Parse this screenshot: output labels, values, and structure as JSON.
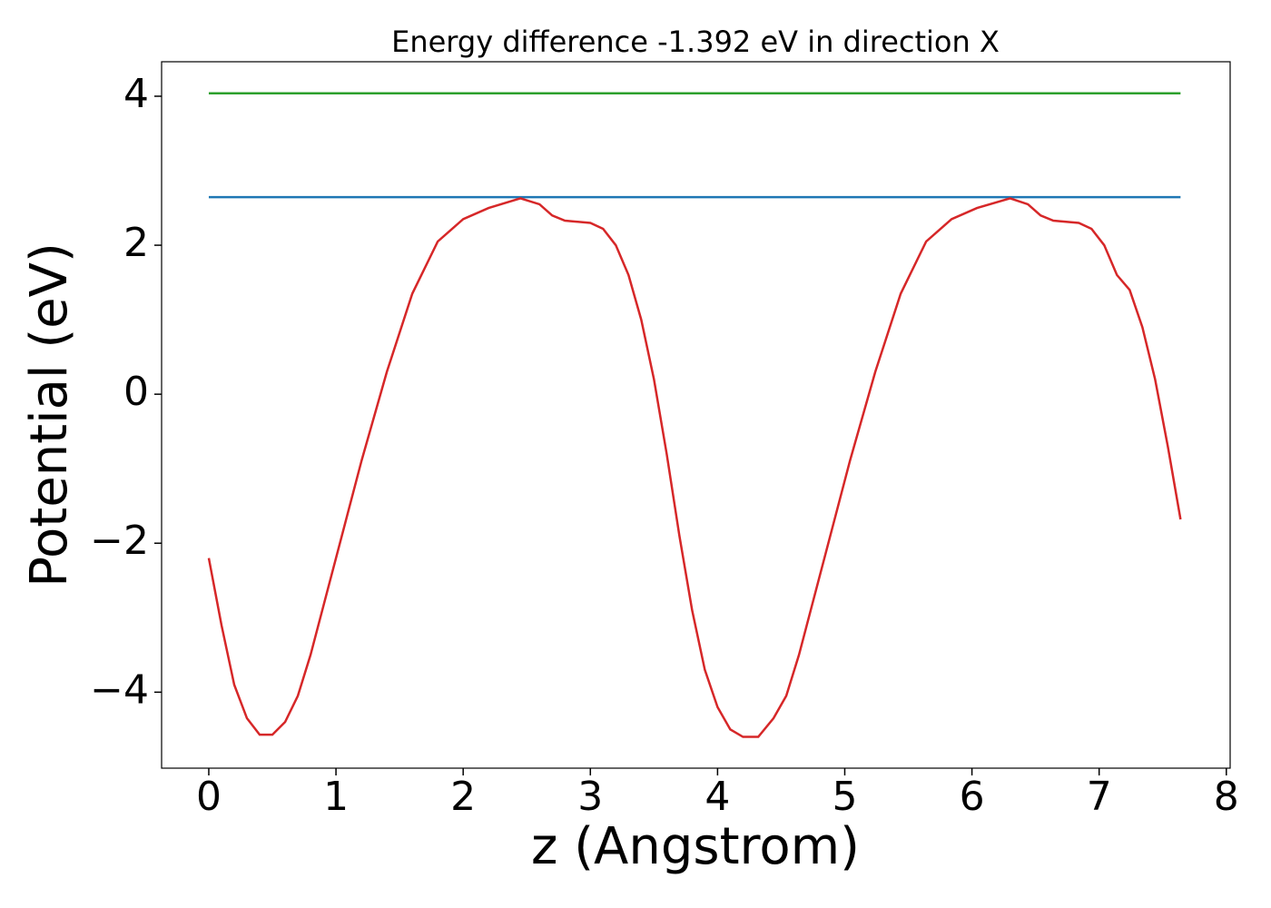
{
  "chart_data": {
    "type": "line",
    "title": "Energy difference -1.392 eV in direction X",
    "x_label": "z (Angstrom)",
    "y_label": "Potential (eV)",
    "xlim": [
      -0.371,
      8.03
    ],
    "ylim": [
      -5.02,
      4.463
    ],
    "xticks": [
      0,
      1,
      2,
      3,
      4,
      5,
      6,
      7,
      8
    ],
    "yticks": [
      {
        "value": -4,
        "label": "−4"
      },
      {
        "value": -2,
        "label": "−2"
      },
      0,
      2,
      4
    ],
    "series": [
      {
        "color": "#2ca02c",
        "x": [
          0,
          7.64
        ],
        "values": [
          4.04,
          4.04
        ]
      },
      {
        "color": "#1f77b4",
        "x": [
          0,
          7.64
        ],
        "values": [
          2.646,
          2.646
        ]
      },
      {
        "color": "#d62728",
        "x": [
          0,
          0.1,
          0.2,
          0.3,
          0.4,
          0.5,
          0.6,
          0.7,
          0.8,
          1.0,
          1.2,
          1.4,
          1.6,
          1.8,
          2.0,
          2.2,
          2.45,
          2.6,
          2.7,
          2.8,
          3.0,
          3.1,
          3.2,
          3.3,
          3.4,
          3.5,
          3.6,
          3.7,
          3.8,
          3.9,
          4.0,
          4.1,
          4.2,
          4.32,
          4.44,
          4.54,
          4.64,
          4.84,
          5.04,
          5.24,
          5.44,
          5.64,
          5.84,
          6.04,
          6.3,
          6.44,
          6.54,
          6.64,
          6.84,
          6.94,
          7.04,
          7.14,
          7.24,
          7.34,
          7.44,
          7.54,
          7.64
        ],
        "values": [
          -2.2,
          -3.1,
          -3.9,
          -4.35,
          -4.57,
          -4.57,
          -4.4,
          -4.05,
          -3.5,
          -2.2,
          -0.9,
          0.3,
          1.35,
          2.05,
          2.35,
          2.5,
          2.63,
          2.55,
          2.4,
          2.33,
          2.3,
          2.22,
          2.0,
          1.6,
          1.0,
          0.2,
          -0.8,
          -1.9,
          -2.9,
          -3.7,
          -4.2,
          -4.5,
          -4.6,
          -4.6,
          -4.35,
          -4.05,
          -3.5,
          -2.2,
          -0.9,
          0.3,
          1.35,
          2.05,
          2.35,
          2.5,
          2.63,
          2.55,
          2.4,
          2.33,
          2.3,
          2.22,
          2.0,
          1.6,
          1.4,
          0.9,
          0.2,
          -0.7,
          -1.68
        ]
      }
    ]
  }
}
